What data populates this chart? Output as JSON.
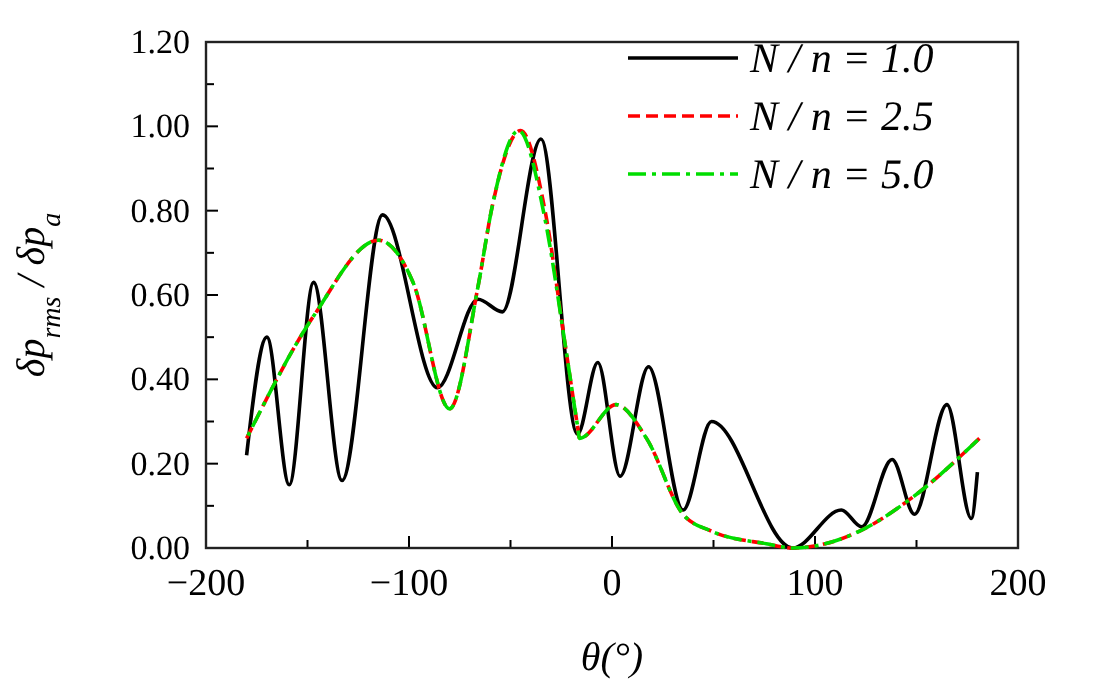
{
  "chart_data": {
    "type": "line",
    "xlabel": "θ(°)",
    "ylabel": "δp$_{rms}$ / δp$_{a}$",
    "xlim": [
      -200,
      200
    ],
    "xticks": [
      -200,
      {
        "value": -150,
        "label": null
      },
      -100,
      {
        "value": -50,
        "label": null
      },
      0,
      {
        "value": 50,
        "label": null
      },
      100,
      {
        "value": 150,
        "label": null
      },
      200
    ],
    "ylim": [
      0,
      1.2
    ],
    "yticks": [
      {
        "value": 0,
        "label": "0.00"
      },
      {
        "value": 0.1,
        "label": null
      },
      {
        "value": 0.2,
        "label": "0.20"
      },
      {
        "value": 0.3,
        "label": null
      },
      {
        "value": 0.4,
        "label": "0.40"
      },
      {
        "value": 0.5,
        "label": null
      },
      {
        "value": 0.6,
        "label": "0.60"
      },
      {
        "value": 0.7,
        "label": null
      },
      {
        "value": 0.8,
        "label": "0.80"
      },
      {
        "value": 0.9,
        "label": null
      },
      {
        "value": 1.0,
        "label": "1.00"
      },
      {
        "value": 1.1,
        "label": null
      },
      {
        "value": 1.2,
        "label": "1.20"
      }
    ],
    "grid": false,
    "legend": "top right",
    "marker": "none",
    "series": [
      {
        "name": "N / n = 1.0",
        "color": "#000000",
        "line_style": "solid",
        "x": [
          -180,
          -170,
          -159,
          -147,
          -133,
          -113,
          -86,
          -66,
          -54,
          -35,
          -17,
          -7,
          4,
          18,
          35,
          49,
          89,
          113,
          123,
          138,
          149,
          165,
          177,
          180
        ],
        "values": [
          0.22,
          0.5,
          0.15,
          0.63,
          0.16,
          0.79,
          0.38,
          0.59,
          0.56,
          0.97,
          0.27,
          0.44,
          0.17,
          0.43,
          0.09,
          0.3,
          0.0,
          0.09,
          0.05,
          0.21,
          0.08,
          0.34,
          0.07,
          0.18
        ]
      },
      {
        "name": "N / n = 2.5",
        "color": "#ff0000",
        "line_style": "dashed",
        "x": [
          -180,
          -147,
          -115,
          -98,
          -80,
          -66,
          -59,
          -45,
          -33,
          -23,
          -17,
          -16,
          2,
          17,
          35,
          49,
          76,
          89,
          105,
          122,
          148,
          181
        ],
        "values": [
          0.26,
          0.55,
          0.73,
          0.63,
          0.33,
          0.62,
          0.81,
          0.99,
          0.8,
          0.48,
          0.29,
          0.26,
          0.34,
          0.26,
          0.08,
          0.04,
          0.01,
          0.0,
          0.01,
          0.04,
          0.12,
          0.26
        ]
      },
      {
        "name": "N / n = 5.0",
        "color": "#00dd00",
        "line_style": "dashdot",
        "x": [
          -180,
          -147,
          -115,
          -98,
          -80,
          -66,
          -59,
          -46,
          -33,
          -23,
          -17,
          -16,
          2,
          17,
          35,
          49,
          76,
          89,
          105,
          122,
          148,
          181
        ],
        "values": [
          0.26,
          0.55,
          0.73,
          0.63,
          0.33,
          0.62,
          0.81,
          0.99,
          0.78,
          0.48,
          0.29,
          0.26,
          0.34,
          0.26,
          0.08,
          0.04,
          0.01,
          0.0,
          0.01,
          0.04,
          0.12,
          0.26
        ]
      }
    ]
  }
}
